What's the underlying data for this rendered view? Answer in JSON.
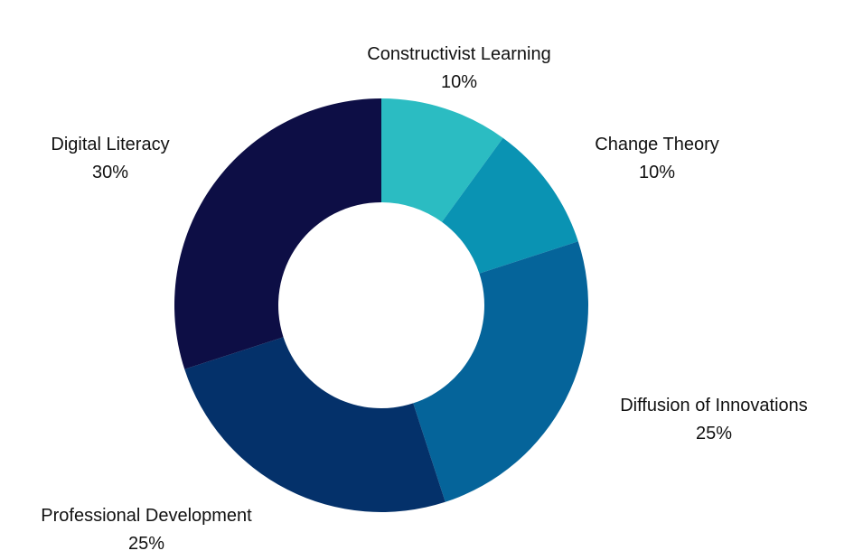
{
  "chart_data": {
    "type": "pie",
    "variant": "donut",
    "slices": [
      {
        "label": "Constructivist Learning",
        "value": 10,
        "display": "10%",
        "color": "#2BBCC2"
      },
      {
        "label": "Change Theory",
        "value": 10,
        "display": "10%",
        "color": "#0A93B3"
      },
      {
        "label": "Diffusion of Innovations",
        "value": 25,
        "display": "25%",
        "color": "#05649A"
      },
      {
        "label": "Professional Development",
        "value": 25,
        "display": "25%",
        "color": "#04316A"
      },
      {
        "label": "Digital Literacy",
        "value": 30,
        "display": "30%",
        "color": "#0D0E45"
      }
    ],
    "start_angle": "12 o'clock",
    "direction": "clockwise",
    "legend": "none",
    "labels": "outside"
  }
}
